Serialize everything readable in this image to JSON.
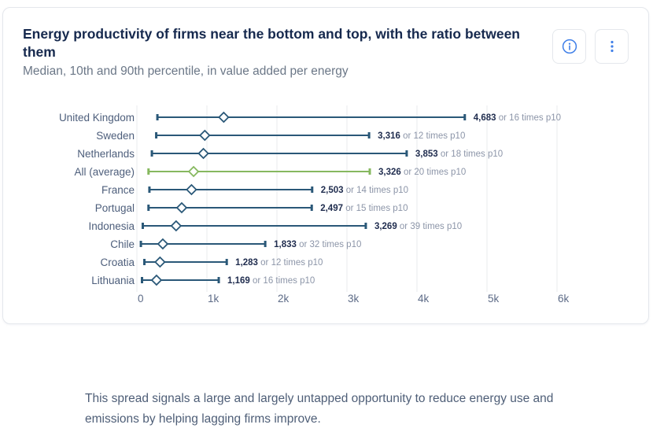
{
  "card": {
    "title": "Energy productivity of firms near the bottom and top, with the ratio between them",
    "subtitle": "Median, 10th and 90th percentile, in value added per energy",
    "toolbar": {
      "info_icon": "info-circle",
      "menu_icon": "kebab-vertical"
    }
  },
  "chart_data": {
    "type": "range",
    "orientation": "horizontal",
    "title": "Energy productivity of firms near the bottom and top, with the ratio between them",
    "subtitle": "Median, 10th and 90th percentile, in value added per energy",
    "xlabel": "",
    "ylabel": "",
    "xlim": [
      0,
      6000
    ],
    "grid": true,
    "legend": false,
    "marker": "open diamond = median; whisker caps = 10th and 90th percentile",
    "colors": {
      "default": "#2a5878",
      "highlight": "#86b85f"
    },
    "xticks": [
      {
        "value": 0,
        "label": "0"
      },
      {
        "value": 1000,
        "label": "1k"
      },
      {
        "value": 2000,
        "label": "2k"
      },
      {
        "value": 3000,
        "label": "3k"
      },
      {
        "value": 4000,
        "label": "4k"
      },
      {
        "value": 5000,
        "label": "5k"
      },
      {
        "value": 6000,
        "label": "6k"
      }
    ],
    "rows": [
      {
        "country": "United Kingdom",
        "p10": 293,
        "median": 1240,
        "p90": 4683,
        "p90_label": "4,683",
        "suffix": "or 16 times p10",
        "highlight": false
      },
      {
        "country": "Sweden",
        "p10": 276,
        "median": 970,
        "p90": 3316,
        "p90_label": "3,316",
        "suffix": "or 12 times p10",
        "highlight": false
      },
      {
        "country": "Netherlands",
        "p10": 214,
        "median": 950,
        "p90": 3853,
        "p90_label": "3,853",
        "suffix": "or 18 times p10",
        "highlight": false
      },
      {
        "country": "All (average)",
        "p10": 166,
        "median": 810,
        "p90": 3326,
        "p90_label": "3,326",
        "suffix": "or 20 times p10",
        "highlight": true
      },
      {
        "country": "France",
        "p10": 179,
        "median": 780,
        "p90": 2503,
        "p90_label": "2,503",
        "suffix": "or 14 times p10",
        "highlight": false
      },
      {
        "country": "Portugal",
        "p10": 166,
        "median": 640,
        "p90": 2497,
        "p90_label": "2,497",
        "suffix": "or 15 times p10",
        "highlight": false
      },
      {
        "country": "Indonesia",
        "p10": 84,
        "median": 560,
        "p90": 3269,
        "p90_label": "3,269",
        "suffix": "or 39 times p10",
        "highlight": false
      },
      {
        "country": "Chile",
        "p10": 57,
        "median": 370,
        "p90": 1833,
        "p90_label": "1,833",
        "suffix": "or 32 times p10",
        "highlight": false
      },
      {
        "country": "Croatia",
        "p10": 107,
        "median": 330,
        "p90": 1283,
        "p90_label": "1,283",
        "suffix": "or 12 times p10",
        "highlight": false
      },
      {
        "country": "Lithuania",
        "p10": 73,
        "median": 280,
        "p90": 1169,
        "p90_label": "1,169",
        "suffix": "or 16 times p10",
        "highlight": false
      }
    ]
  },
  "caption": "This spread signals a large and largely untapped opportunity to reduce energy use and emissions by helping lagging firms improve."
}
